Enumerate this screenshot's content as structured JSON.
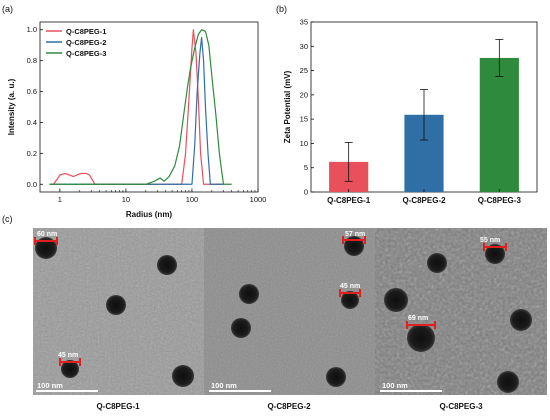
{
  "panels": {
    "a": {
      "letter": "(a)"
    },
    "b": {
      "letter": "(b)"
    },
    "c": {
      "letter": "(c)"
    }
  },
  "chart_data": [
    {
      "panel": "a",
      "type": "line",
      "xlabel": "Radius (nm)",
      "ylabel": "Intensity (a. u.)",
      "xscale": "log",
      "xlim": [
        0.5,
        1000
      ],
      "ylim": [
        -0.05,
        1.05
      ],
      "xticks": [
        1,
        10,
        100,
        1000
      ],
      "yticks": [
        0.0,
        0.2,
        0.4,
        0.6,
        0.8,
        1.0
      ],
      "legend_position": "top-left",
      "series": [
        {
          "name": "Q-C8PEG-1",
          "color": "#e8505b",
          "points": [
            [
              0.7,
              0.0
            ],
            [
              0.8,
              0.0
            ],
            [
              0.9,
              0.03
            ],
            [
              1.0,
              0.06
            ],
            [
              1.2,
              0.07
            ],
            [
              1.4,
              0.06
            ],
            [
              1.6,
              0.05
            ],
            [
              1.8,
              0.06
            ],
            [
              2.1,
              0.07
            ],
            [
              2.5,
              0.07
            ],
            [
              2.8,
              0.06
            ],
            [
              3.1,
              0.03
            ],
            [
              3.4,
              0.0
            ],
            [
              5,
              0.0
            ],
            [
              20,
              0.0
            ],
            [
              50,
              0.0
            ],
            [
              70,
              0.0
            ],
            [
              80,
              0.2
            ],
            [
              90,
              0.55
            ],
            [
              100,
              0.88
            ],
            [
              105,
              1.0
            ],
            [
              115,
              0.85
            ],
            [
              125,
              0.55
            ],
            [
              135,
              0.2
            ],
            [
              150,
              0.0
            ],
            [
              300,
              0.0
            ]
          ]
        },
        {
          "name": "Q-C8PEG-2",
          "color": "#2f6fa6",
          "points": [
            [
              0.7,
              0.0
            ],
            [
              5,
              0.0
            ],
            [
              20,
              0.0
            ],
            [
              40,
              0.0
            ],
            [
              100,
              0.0
            ],
            [
              110,
              0.25
            ],
            [
              120,
              0.6
            ],
            [
              132,
              0.85
            ],
            [
              140,
              0.95
            ],
            [
              150,
              0.8
            ],
            [
              160,
              0.5
            ],
            [
              175,
              0.2
            ],
            [
              190,
              0.0
            ],
            [
              300,
              0.0
            ]
          ]
        },
        {
          "name": "Q-C8PEG-3",
          "color": "#2e8b3e",
          "points": [
            [
              0.7,
              0.0
            ],
            [
              5,
              0.0
            ],
            [
              20,
              0.0
            ],
            [
              27,
              0.02
            ],
            [
              33,
              0.04
            ],
            [
              38,
              0.02
            ],
            [
              45,
              0.05
            ],
            [
              55,
              0.12
            ],
            [
              65,
              0.25
            ],
            [
              75,
              0.45
            ],
            [
              85,
              0.62
            ],
            [
              95,
              0.75
            ],
            [
              110,
              0.88
            ],
            [
              125,
              0.97
            ],
            [
              140,
              1.0
            ],
            [
              160,
              0.99
            ],
            [
              180,
              0.9
            ],
            [
              200,
              0.7
            ],
            [
              230,
              0.45
            ],
            [
              260,
              0.2
            ],
            [
              300,
              0.0
            ],
            [
              400,
              0.0
            ]
          ]
        }
      ]
    },
    {
      "panel": "b",
      "type": "bar",
      "xlabel": "",
      "ylabel": "Zeta Potential (mV)",
      "ylim": [
        0,
        35
      ],
      "yticks": [
        0,
        5,
        10,
        15,
        20,
        25,
        30,
        35
      ],
      "categories": [
        "Q-C8PEG-1",
        "Q-C8PEG-2",
        "Q-C8PEG-3"
      ],
      "values": [
        6.2,
        15.9,
        27.6
      ],
      "errors": [
        4.0,
        5.2,
        3.8
      ],
      "colors": [
        "#e8505b",
        "#2f6fa6",
        "#2e8b3e"
      ]
    }
  ],
  "tem": {
    "panes": [
      {
        "caption": "Q-C8PEG-1",
        "scale_bar": "100 nm",
        "annotations": [
          "60 nm",
          "45 nm"
        ]
      },
      {
        "caption": "Q-C8PEG-2",
        "scale_bar": "100 nm",
        "annotations": [
          "57 nm",
          "45 nm"
        ]
      },
      {
        "caption": "Q-C8PEG-3",
        "scale_bar": "100 nm",
        "annotations": [
          "55 nm",
          "69 nm"
        ]
      }
    ],
    "annotation_color": "#e02020"
  }
}
